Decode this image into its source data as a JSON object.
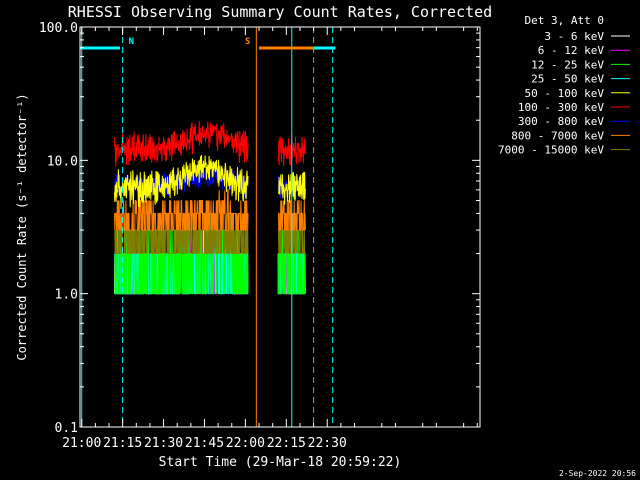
{
  "chart_data": {
    "type": "line",
    "title": "RHESSI Observing Summary Count Rates, Corrected",
    "xlabel": "Start Time (29-Mar-18 20:59:22)",
    "ylabel": "Corrected Count Rate (s⁻¹ detector⁻¹)",
    "y_scale": "log",
    "ylim": [
      0.1,
      100.0
    ],
    "y_ticks": [
      "0.1",
      "1.0",
      "10.0",
      "100.0"
    ],
    "xlim": [
      "20:59:22",
      "23:26:00"
    ],
    "x_ticks": [
      "21:00",
      "21:15",
      "21:30",
      "21:45",
      "22:00",
      "22:15",
      "22:30"
    ],
    "legend_header": "Det 3, Att 0",
    "legend_position": "top-right, outside plot",
    "series": [
      {
        "name": "3 - 6 keV",
        "color": "#ffffff",
        "level_low": 1.0,
        "level_high": 2.0
      },
      {
        "name": "6 - 12 keV",
        "color": "#ff00ff",
        "level_low": 1.0,
        "level_high": 2.0
      },
      {
        "name": "12 - 25 keV",
        "color": "#00ff00",
        "level_low": 1.0,
        "level_high": 3.0
      },
      {
        "name": "25 - 50 keV",
        "color": "#00ffff",
        "level_low": 1.0,
        "level_high": 2.0
      },
      {
        "name": "50 - 100 keV",
        "color": "#ffff00",
        "level_low": 5.0,
        "level_high": 12.0
      },
      {
        "name": "100 - 300 keV",
        "color": "#ff0000",
        "level_low": 10.0,
        "level_high": 22.0
      },
      {
        "name": "300 - 800 keV",
        "color": "#0000ff",
        "level_low": 6.0,
        "level_high": 9.0
      },
      {
        "name": "800 - 7000 keV",
        "color": "#ff8000",
        "level_low": 3.0,
        "level_high": 5.0
      },
      {
        "name": "7000 - 15000 keV",
        "color": "#808000",
        "level_low": 2.0,
        "level_high": 3.0
      }
    ],
    "data_segments": [
      [
        "21:12",
        "22:01"
      ],
      [
        "22:12",
        "22:22"
      ]
    ],
    "flags": [
      {
        "label": "N",
        "color": "#00ffff",
        "bars": [
          [
            "20:59:22",
            "21:14"
          ],
          [
            "22:18",
            "22:33"
          ]
        ],
        "edges": [
          "21:15",
          "22:32"
        ]
      },
      {
        "label": "S",
        "color": "#ff8000",
        "bars": [
          [
            "22:05",
            "22:25"
          ]
        ],
        "edges": [
          "22:04",
          "22:25"
        ]
      }
    ],
    "night_edges": [
      "21:00",
      "22:17"
    ],
    "grid": false
  },
  "footer": {
    "timestamp": "2-Sep-2022 20:56"
  }
}
